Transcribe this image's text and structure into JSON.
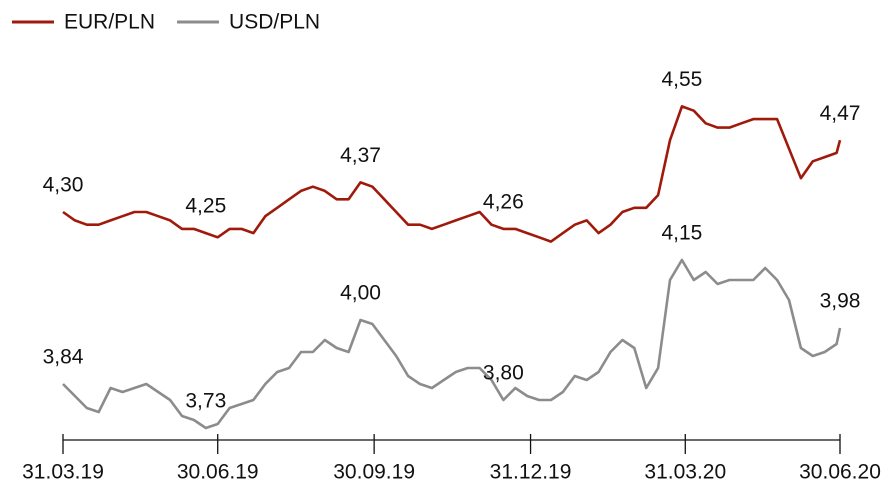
{
  "chart_data": {
    "type": "line",
    "x": [
      "31.03.19",
      "07.04.19",
      "14.04.19",
      "21.04.19",
      "28.04.19",
      "05.05.19",
      "12.05.19",
      "19.05.19",
      "26.05.19",
      "02.06.19",
      "09.06.19",
      "16.06.19",
      "23.06.19",
      "30.06.19",
      "07.07.19",
      "14.07.19",
      "21.07.19",
      "28.07.19",
      "04.08.19",
      "11.08.19",
      "18.08.19",
      "25.08.19",
      "01.09.19",
      "08.09.19",
      "15.09.19",
      "22.09.19",
      "29.09.19",
      "06.10.19",
      "13.10.19",
      "20.10.19",
      "27.10.19",
      "03.11.19",
      "10.11.19",
      "17.11.19",
      "24.11.19",
      "01.12.19",
      "08.12.19",
      "15.12.19",
      "22.12.19",
      "29.12.19",
      "05.01.20",
      "12.01.20",
      "19.01.20",
      "26.01.20",
      "02.02.20",
      "09.02.20",
      "16.02.20",
      "23.02.20",
      "01.03.20",
      "08.03.20",
      "15.03.20",
      "22.03.20",
      "29.03.20",
      "05.04.20",
      "12.04.20",
      "19.04.20",
      "26.04.20",
      "03.05.20",
      "10.05.20",
      "17.05.20",
      "24.05.20",
      "31.05.20",
      "07.06.20",
      "14.06.20",
      "21.06.20",
      "28.06.20",
      "30.06.20"
    ],
    "xlim": [
      "31.03.19",
      "30.06.20"
    ],
    "xticks": [
      "31.03.19",
      "30.06.19",
      "30.09.19",
      "31.12.19",
      "31.03.20",
      "30.06.20"
    ],
    "ylim": [
      3.76,
      4.66
    ],
    "y2lim": [
      3.7,
      4.65
    ],
    "legend": "top-left",
    "series": [
      {
        "name": "EUR/PLN",
        "color": "#a01a0c",
        "values": [
          4.3,
          4.28,
          4.27,
          4.27,
          4.28,
          4.29,
          4.3,
          4.3,
          4.29,
          4.28,
          4.26,
          4.26,
          4.25,
          4.24,
          4.26,
          4.26,
          4.25,
          4.29,
          4.31,
          4.33,
          4.35,
          4.36,
          4.35,
          4.33,
          4.33,
          4.37,
          4.36,
          4.33,
          4.3,
          4.27,
          4.27,
          4.26,
          4.27,
          4.28,
          4.29,
          4.3,
          4.27,
          4.26,
          4.26,
          4.25,
          4.24,
          4.23,
          4.25,
          4.27,
          4.28,
          4.25,
          4.27,
          4.3,
          4.31,
          4.31,
          4.34,
          4.47,
          4.55,
          4.54,
          4.51,
          4.5,
          4.5,
          4.51,
          4.52,
          4.52,
          4.52,
          4.45,
          4.38,
          4.42,
          4.43,
          4.44,
          4.47
        ],
        "value_labels": [
          "4,30",
          null,
          null,
          null,
          null,
          null,
          null,
          null,
          null,
          null,
          null,
          null,
          "4,25",
          null,
          null,
          null,
          null,
          null,
          null,
          null,
          null,
          null,
          null,
          null,
          null,
          "4,37",
          null,
          null,
          null,
          null,
          null,
          null,
          null,
          null,
          null,
          null,
          null,
          "4,26",
          null,
          null,
          null,
          null,
          null,
          null,
          null,
          null,
          null,
          null,
          null,
          null,
          null,
          null,
          "4,55",
          null,
          null,
          null,
          null,
          null,
          null,
          null,
          null,
          null,
          null,
          null,
          null,
          null,
          "4,47"
        ]
      },
      {
        "name": "USD/PLN",
        "color": "#8c8c8c",
        "axis": "y2",
        "values": [
          3.84,
          3.81,
          3.78,
          3.77,
          3.83,
          3.82,
          3.83,
          3.84,
          3.82,
          3.8,
          3.76,
          3.75,
          3.73,
          3.74,
          3.78,
          3.79,
          3.8,
          3.84,
          3.87,
          3.88,
          3.92,
          3.92,
          3.95,
          3.93,
          3.92,
          4.0,
          3.99,
          3.95,
          3.91,
          3.86,
          3.84,
          3.83,
          3.85,
          3.87,
          3.88,
          3.88,
          3.85,
          3.8,
          3.83,
          3.81,
          3.8,
          3.8,
          3.82,
          3.86,
          3.85,
          3.87,
          3.92,
          3.95,
          3.93,
          3.83,
          3.88,
          4.1,
          4.15,
          4.1,
          4.12,
          4.09,
          4.1,
          4.1,
          4.1,
          4.13,
          4.1,
          4.05,
          3.93,
          3.91,
          3.92,
          3.94,
          3.98
        ],
        "value_labels": [
          "3,84",
          null,
          null,
          null,
          null,
          null,
          null,
          null,
          null,
          null,
          null,
          null,
          "3,73",
          null,
          null,
          null,
          null,
          null,
          null,
          null,
          null,
          null,
          null,
          null,
          null,
          "4,00",
          null,
          null,
          null,
          null,
          null,
          null,
          null,
          null,
          null,
          null,
          null,
          "3,80",
          null,
          null,
          null,
          null,
          null,
          null,
          null,
          null,
          null,
          null,
          null,
          null,
          null,
          null,
          "4,15",
          null,
          null,
          null,
          null,
          null,
          null,
          null,
          null,
          null,
          null,
          null,
          null,
          null,
          "3,98"
        ]
      }
    ]
  }
}
